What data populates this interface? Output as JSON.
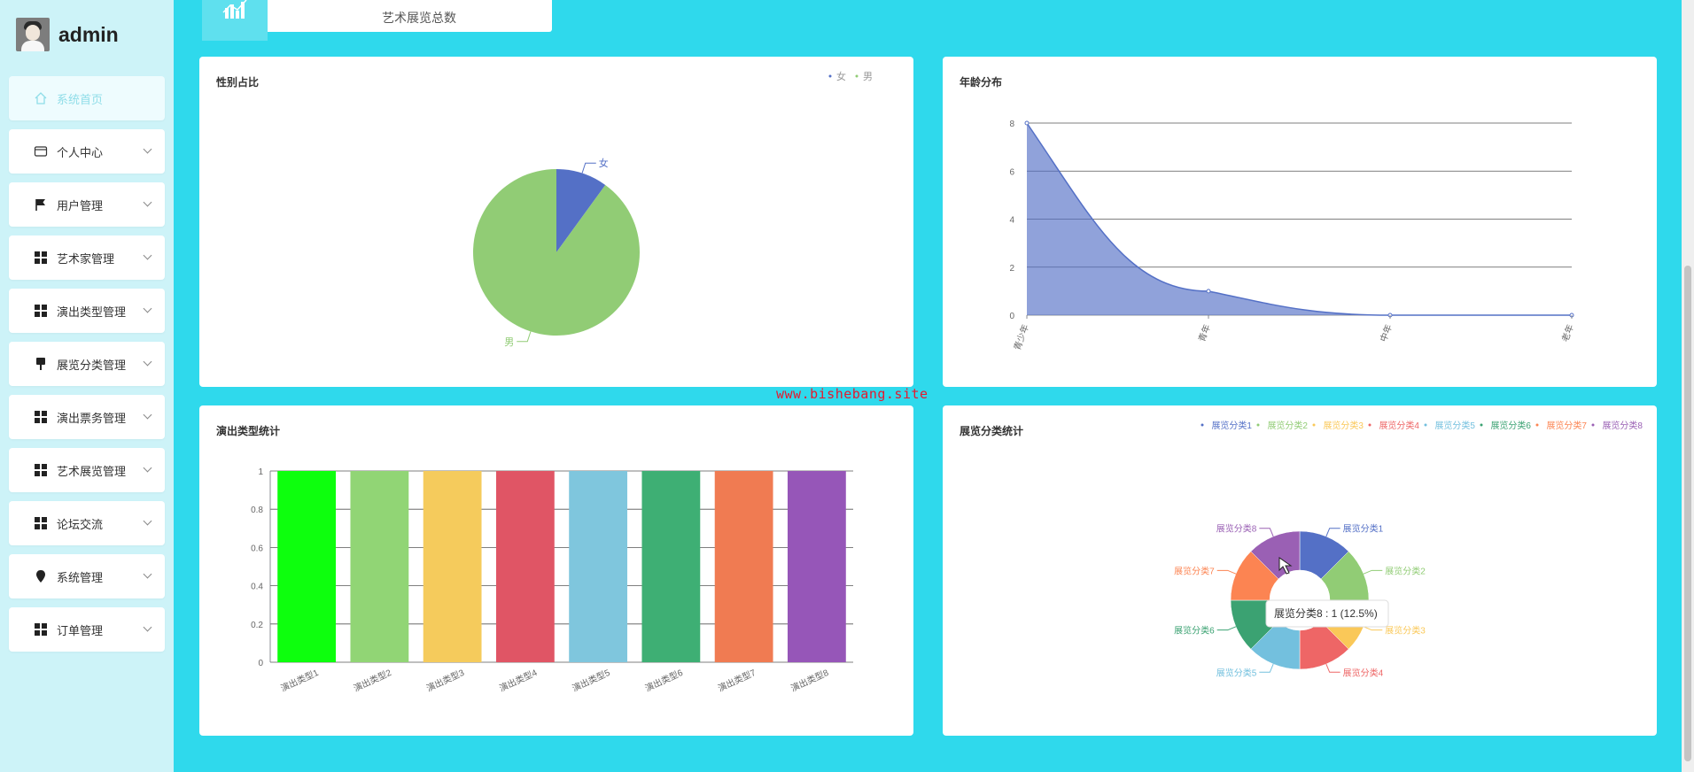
{
  "user": {
    "name": "admin"
  },
  "menu": [
    {
      "label": "系统首页",
      "icon": "home-icon",
      "active": true,
      "chevron": false
    },
    {
      "label": "个人中心",
      "icon": "wallet-icon",
      "chevron": true
    },
    {
      "label": "用户管理",
      "icon": "flag-icon",
      "chevron": true
    },
    {
      "label": "艺术家管理",
      "icon": "grid-icon",
      "chevron": true
    },
    {
      "label": "演出类型管理",
      "icon": "grid-icon",
      "chevron": true
    },
    {
      "label": "展览分类管理",
      "icon": "brush-icon",
      "chevron": true
    },
    {
      "label": "演出票务管理",
      "icon": "grid-icon",
      "chevron": true
    },
    {
      "label": "艺术展览管理",
      "icon": "grid-icon",
      "chevron": true
    },
    {
      "label": "论坛交流",
      "icon": "grid-icon",
      "chevron": true
    },
    {
      "label": "系统管理",
      "icon": "location-icon",
      "chevron": true
    },
    {
      "label": "订单管理",
      "icon": "grid-icon",
      "chevron": true
    }
  ],
  "top_card": {
    "label": "艺术展览总数"
  },
  "watermark": "www.bishebang.site",
  "panels": {
    "gender": {
      "title": "性别占比"
    },
    "age": {
      "title": "年龄分布"
    },
    "show_type": {
      "title": "演出类型统计"
    },
    "exhibit": {
      "title": "展览分类统计",
      "tooltip": "展览分类8 : 1 (12.5%)"
    }
  },
  "chart_data": [
    {
      "type": "pie",
      "title": "性别占比",
      "legend": [
        "女",
        "男"
      ],
      "legend_position": "top-right",
      "slices": [
        {
          "name": "女",
          "value": 1,
          "color": "#5470c6"
        },
        {
          "name": "男",
          "value": 9,
          "color": "#91cc75"
        }
      ]
    },
    {
      "type": "area",
      "title": "年龄分布",
      "categories": [
        "青少年",
        "青年",
        "中年",
        "老年"
      ],
      "values": [
        8,
        1,
        0,
        0
      ],
      "ylim": [
        0,
        8
      ],
      "yticks": [
        0,
        2,
        4,
        6,
        8
      ],
      "grid": true,
      "color": "#5470c6"
    },
    {
      "type": "bar",
      "title": "演出类型统计",
      "categories": [
        "演出类型1",
        "演出类型2",
        "演出类型3",
        "演出类型4",
        "演出类型5",
        "演出类型6",
        "演出类型7",
        "演出类型8"
      ],
      "values": [
        1,
        1,
        1,
        1,
        1,
        1,
        1,
        1
      ],
      "colors": [
        "#0dff0d",
        "#91d575",
        "#f5cb5c",
        "#e05565",
        "#7fc6dd",
        "#3eaf74",
        "#f07b52",
        "#9656b8"
      ],
      "ylim": [
        0,
        1
      ],
      "yticks": [
        "0",
        "0.2",
        "0.4",
        "0.6",
        "0.8",
        "1"
      ],
      "grid": true
    },
    {
      "type": "pie",
      "subtype": "donut",
      "title": "展览分类统计",
      "legend_position": "top-right",
      "slices": [
        {
          "name": "展览分类1",
          "value": 1,
          "color": "#5470c6"
        },
        {
          "name": "展览分类2",
          "value": 1,
          "color": "#91cc75"
        },
        {
          "name": "展览分类3",
          "value": 1,
          "color": "#fac858"
        },
        {
          "name": "展览分类4",
          "value": 1,
          "color": "#ee6666"
        },
        {
          "name": "展览分类5",
          "value": 1,
          "color": "#73c0de"
        },
        {
          "name": "展览分类6",
          "value": 1,
          "color": "#3ba272"
        },
        {
          "name": "展览分类7",
          "value": 1,
          "color": "#fc8452"
        },
        {
          "name": "展览分类8",
          "value": 1,
          "color": "#9a60b4"
        }
      ]
    }
  ]
}
